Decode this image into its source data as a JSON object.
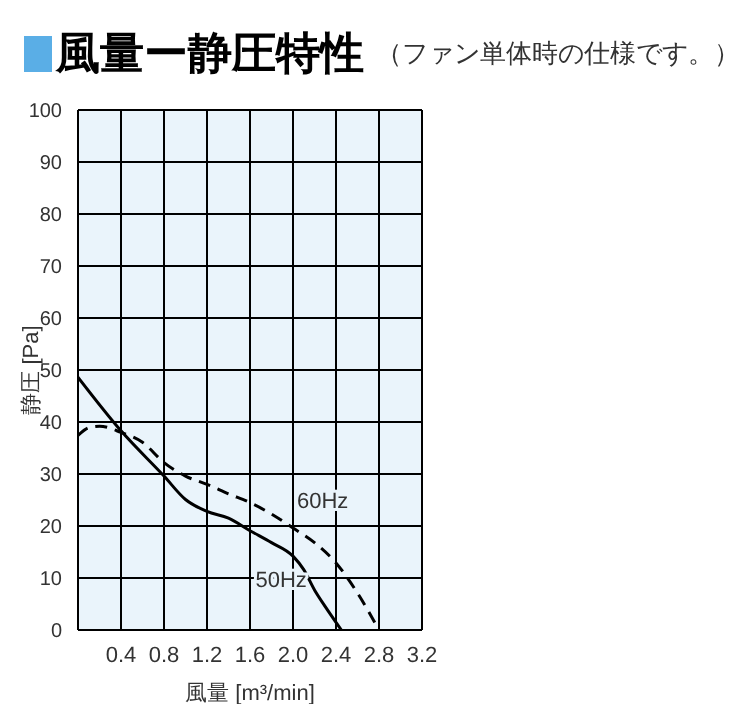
{
  "chart_data": {
    "type": "line",
    "title": "風量ー静圧特性",
    "subtitle": "（ファン単体時の仕様です。）",
    "xlabel": "風量 [m³/min]",
    "ylabel": "静圧 [Pa]",
    "xlim": [
      0,
      3.2
    ],
    "xticks": [
      {
        "value": 0,
        "label": null
      },
      0.4,
      0.8,
      1.2,
      1.6,
      {
        "value": 2,
        "label": "2.0"
      },
      2.4,
      2.8,
      3.2
    ],
    "ylim": [
      0,
      100
    ],
    "yticks": [
      0,
      10,
      20,
      30,
      40,
      50,
      60,
      70,
      80,
      90,
      100
    ],
    "grid": true,
    "marker": "none",
    "series": [
      {
        "name": "50Hz",
        "color": "#000000",
        "line_style": "solid",
        "x": [
          0,
          0.4,
          0.8,
          1.0,
          1.2,
          1.4,
          1.6,
          1.8,
          2.0,
          2.1,
          2.2,
          2.3,
          2.45
        ],
        "values": [
          48.6,
          38.3,
          29.6,
          25.1,
          22.8,
          21.5,
          19.1,
          16.8,
          14.2,
          11.6,
          7.7,
          4.5,
          0
        ]
      },
      {
        "name": "60Hz",
        "color": "#000000",
        "line_style": "dashed",
        "x": [
          0,
          0.1,
          0.2,
          0.4,
          0.6,
          0.8,
          1.0,
          1.2,
          1.4,
          1.6,
          1.8,
          2.0,
          2.2,
          2.4,
          2.6,
          2.8
        ],
        "values": [
          37.4,
          38.9,
          39.2,
          38,
          36.1,
          32.2,
          29.6,
          28,
          26.2,
          24.5,
          22.3,
          19.6,
          16.8,
          12.9,
          7.1,
          0
        ]
      }
    ]
  }
}
